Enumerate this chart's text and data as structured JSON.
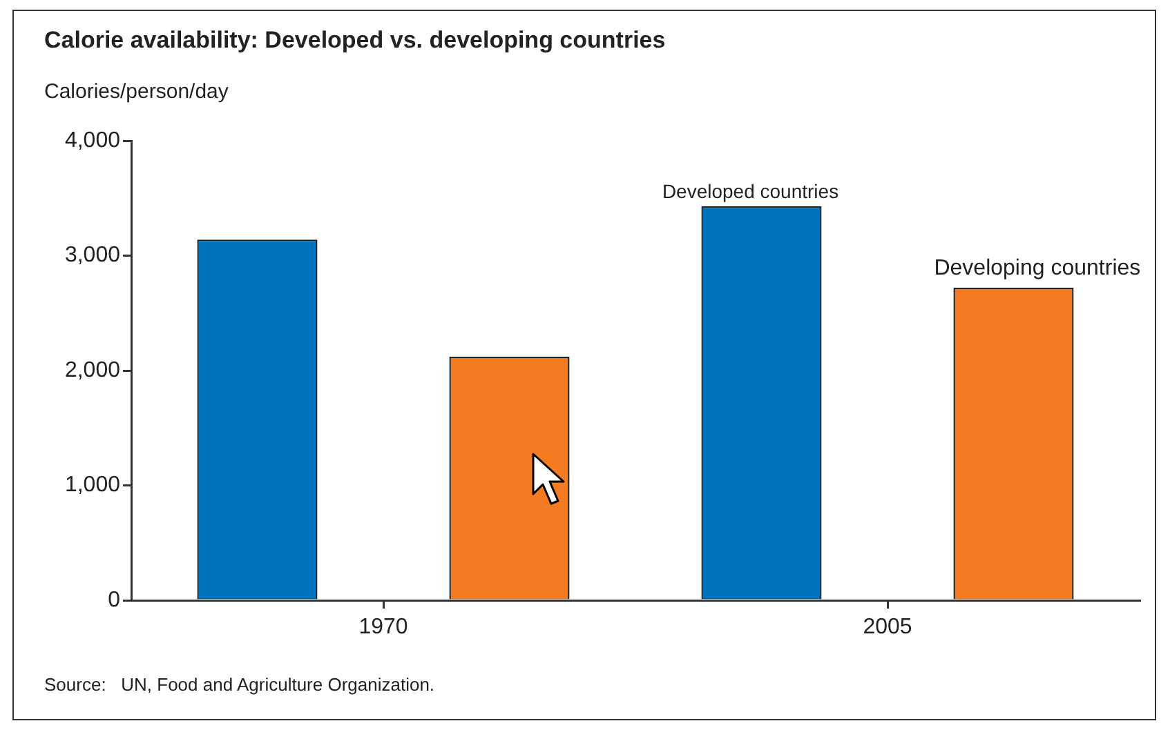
{
  "chart_data": {
    "type": "bar",
    "title": "Calorie availability: Developed vs. developing countries",
    "ylabel": "Calories/person/day",
    "categories": [
      "1970",
      "2005"
    ],
    "series": [
      {
        "name": "Developed countries",
        "color": "#0071bc",
        "values": [
          3140,
          3430
        ]
      },
      {
        "name": "Developing countries",
        "color": "#f47b20",
        "values": [
          2120,
          2720
        ]
      }
    ],
    "ylim": [
      0,
      4000
    ],
    "yticks": [
      0,
      {
        "value": 1000,
        "label": "1,000"
      },
      {
        "value": 2000,
        "label": "2,000"
      },
      {
        "value": 3000,
        "label": "3,000"
      },
      {
        "value": 4000,
        "label": "4,000"
      }
    ],
    "annotations": [
      "Source:   UN, Food and Agriculture Organization."
    ]
  }
}
